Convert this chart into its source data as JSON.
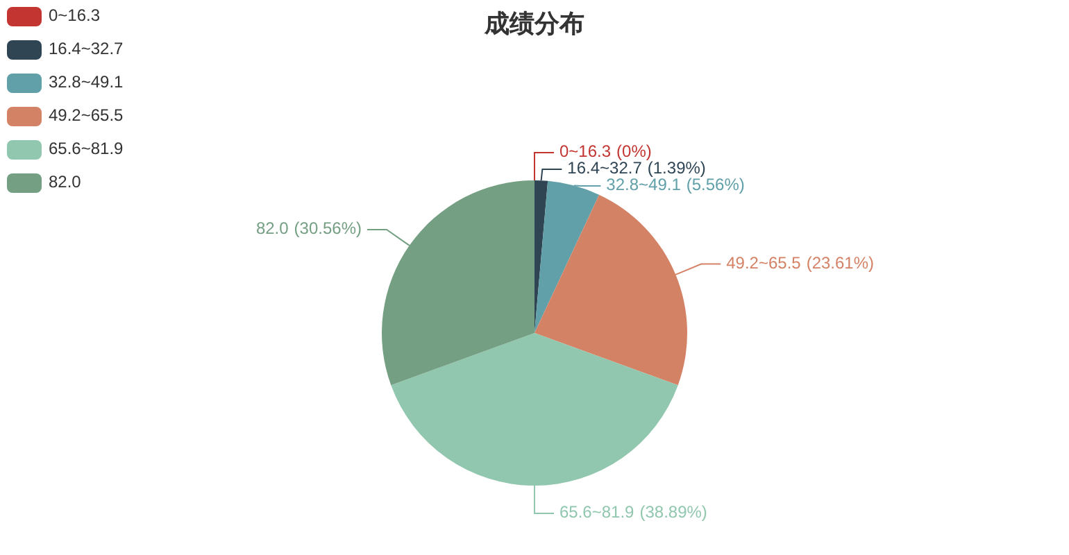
{
  "chart_data": {
    "type": "pie",
    "title": "成绩分布",
    "categories": [
      "0~16.3",
      "16.4~32.7",
      "32.8~49.1",
      "49.2~65.5",
      "65.6~81.9",
      "82.0"
    ],
    "values": [
      0,
      1.39,
      5.56,
      23.61,
      38.89,
      30.56
    ],
    "value_labels": [
      "(0%)",
      "(1.39%)",
      "(5.56%)",
      "(23.61%)",
      "(38.89%)",
      "(30.56%)"
    ],
    "colors": [
      "#c23531",
      "#2f4554",
      "#61a0a8",
      "#d48265",
      "#91c7ae",
      "#749f83"
    ],
    "legend": "top left"
  }
}
